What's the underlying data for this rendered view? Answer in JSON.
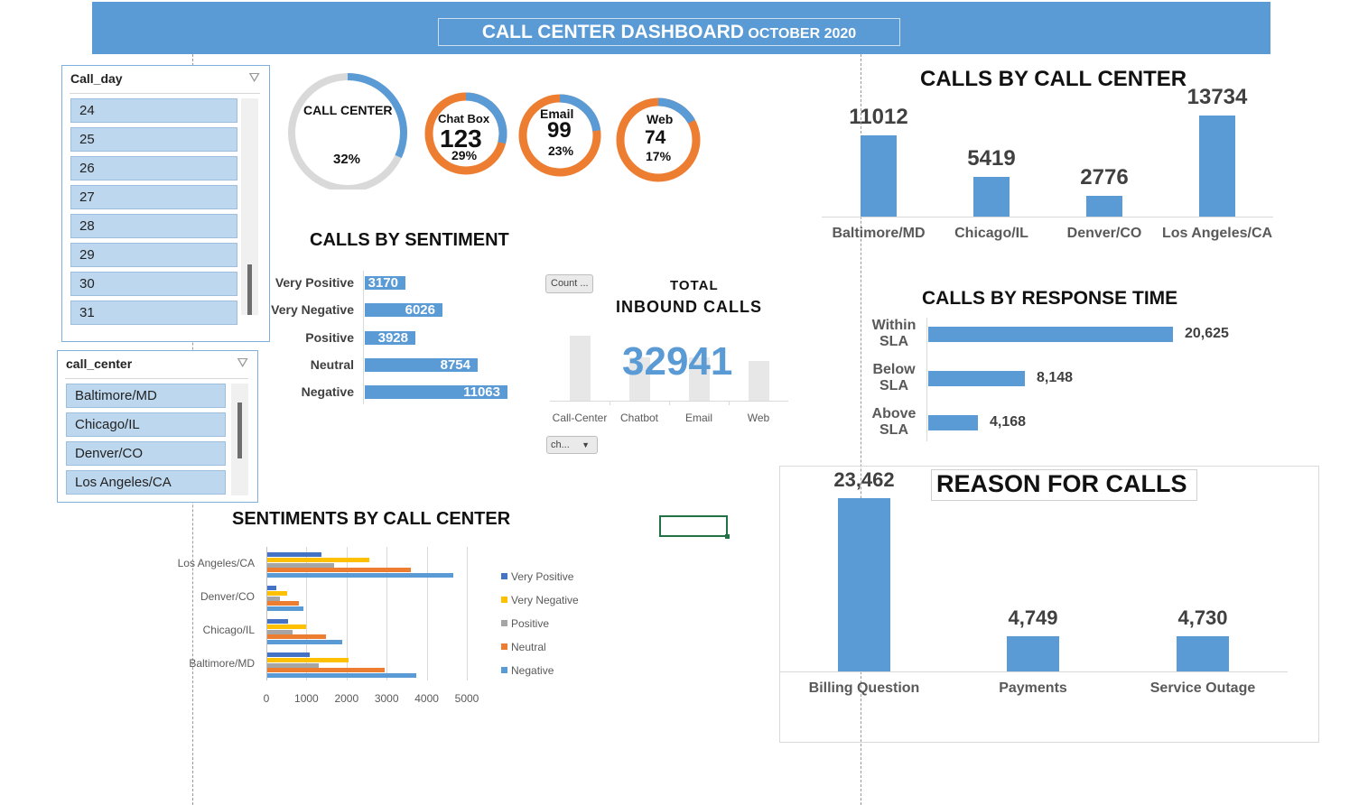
{
  "banner": {
    "title": "CALL CENTER DASHBOARD",
    "subtitle": "OCTOBER 2020",
    "color": "#5b9bd5"
  },
  "slicers": {
    "call_day": {
      "title": "Call_day",
      "items": [
        "24",
        "25",
        "26",
        "27",
        "28",
        "29",
        "30",
        "31"
      ]
    },
    "call_center": {
      "title": "call_center",
      "items": [
        "Baltimore/MD",
        "Chicago/IL",
        "Denver/CO",
        "Los Angeles/CA"
      ]
    }
  },
  "donuts": {
    "call_center": {
      "label": "CALL CENTER",
      "percent": "32%",
      "fraction": 0.32
    },
    "chat_box": {
      "label": "Chat Box",
      "value": "123",
      "percent": "29%",
      "fraction": 0.29
    },
    "email": {
      "label": "Email",
      "value": "99",
      "percent": "23%",
      "fraction": 0.23
    },
    "web": {
      "label": "Web",
      "value": "74",
      "percent": "17%",
      "fraction": 0.17
    }
  },
  "colors": {
    "blue": "#5b9bd5",
    "orange": "#ed7d31",
    "gray": "#d9d9d9",
    "yellow": "#ffc000",
    "gray_series": "#a5a5a5",
    "dark_blue": "#4472c4"
  },
  "calls_by_call_center": {
    "title": "CALLS BY CALL CENTER",
    "categories": [
      "Baltimore/MD",
      "Chicago/IL",
      "Denver/CO",
      "Los Angeles/CA"
    ],
    "values": [
      "11012",
      "5419",
      "2776",
      "13734"
    ]
  },
  "calls_by_sentiment": {
    "title": "CALLS BY SENTIMENT",
    "categories": [
      "Very Positive",
      "Very Negative",
      "Positive",
      "Neutral",
      "Negative"
    ],
    "values": [
      "3170",
      "6026",
      "3928",
      "8754",
      "11063"
    ]
  },
  "total": {
    "label1": "TOTAL",
    "label2": "INBOUND CALLS",
    "value": "32941",
    "count_button": "Count ...",
    "channel_dropdown": "ch...",
    "channels": [
      "Call-Center",
      "Chatbot",
      "Email",
      "Web"
    ]
  },
  "response_time": {
    "title": "CALLS BY RESPONSE TIME",
    "categories": [
      "Within SLA",
      "Below SLA",
      "Above SLA"
    ],
    "cat_lines": [
      [
        "Within",
        "SLA"
      ],
      [
        "Below",
        "SLA"
      ],
      [
        "Above",
        "SLA"
      ]
    ],
    "values": [
      "20,625",
      "8,148",
      "4,168"
    ]
  },
  "reason": {
    "title": "REASON FOR CALLS",
    "categories": [
      "Billing Question",
      "Payments",
      "Service Outage"
    ],
    "values": [
      "23,462",
      "4,749",
      "4,730"
    ]
  },
  "sentiments_by_center": {
    "title": "SENTIMENTS BY CALL CENTER",
    "centers": [
      "Los Angeles/CA",
      "Denver/CO",
      "Chicago/IL",
      "Baltimore/MD"
    ],
    "x_ticks": [
      "0",
      "1000",
      "2000",
      "3000",
      "4000",
      "5000"
    ],
    "legend": [
      "Very Positive",
      "Very Negative",
      "Positive",
      "Neutral",
      "Negative"
    ]
  },
  "chart_data": [
    {
      "type": "bar",
      "title": "CALLS BY CALL CENTER",
      "categories": [
        "Baltimore/MD",
        "Chicago/IL",
        "Denver/CO",
        "Los Angeles/CA"
      ],
      "values": [
        11012,
        5419,
        2776,
        13734
      ]
    },
    {
      "type": "bar",
      "title": "CALLS BY SENTIMENT",
      "categories": [
        "Very Positive",
        "Very Negative",
        "Positive",
        "Neutral",
        "Negative"
      ],
      "values": [
        3170,
        6026,
        3928,
        8754,
        11063
      ]
    },
    {
      "type": "bar",
      "title": "CALLS BY RESPONSE TIME",
      "categories": [
        "Within SLA",
        "Below SLA",
        "Above SLA"
      ],
      "values": [
        20625,
        8148,
        4168
      ]
    },
    {
      "type": "bar",
      "title": "REASON FOR CALLS",
      "categories": [
        "Billing Question",
        "Payments",
        "Service Outage"
      ],
      "values": [
        23462,
        4749,
        4730
      ]
    },
    {
      "type": "bar",
      "title": "SENTIMENTS BY CALL CENTER",
      "categories": [
        "Los Angeles/CA",
        "Denver/CO",
        "Chicago/IL",
        "Baltimore/MD"
      ],
      "xlim": [
        0,
        5000
      ],
      "series": [
        {
          "name": "Very Positive",
          "values": [
            1350,
            220,
            520,
            1060
          ]
        },
        {
          "name": "Very Negative",
          "values": [
            2550,
            500,
            970,
            2020
          ]
        },
        {
          "name": "Positive",
          "values": [
            1670,
            320,
            640,
            1290
          ]
        },
        {
          "name": "Neutral",
          "values": [
            3580,
            780,
            1460,
            2920
          ]
        },
        {
          "name": "Negative",
          "values": [
            4640,
            900,
            1870,
            3720
          ]
        }
      ]
    },
    {
      "type": "bar",
      "title": "",
      "categories": [
        "Call-Center",
        "Chatbot",
        "Email",
        "Web"
      ],
      "values": [
        32941,
        123,
        99,
        74
      ]
    }
  ]
}
